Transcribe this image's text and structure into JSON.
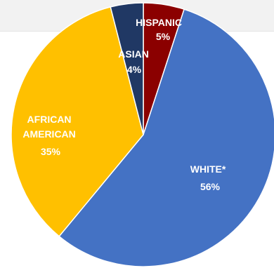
{
  "chart_data": {
    "type": "pie",
    "slices": [
      {
        "label": "HISPANIC",
        "value": 5,
        "value_label": "5%",
        "color": "#8b0000"
      },
      {
        "label": "WHITE*",
        "value": 56,
        "value_label": "56%",
        "color": "#4472c4"
      },
      {
        "label": "AFRICAN AMERICAN",
        "label_lines": [
          "AFRICAN",
          "AMERICAN"
        ],
        "value": 35,
        "value_label": "35%",
        "color": "#ffc000"
      },
      {
        "label": "ASIAN",
        "value": 4,
        "value_label": "4%",
        "color": "#203864"
      }
    ],
    "start": "top, clockwise"
  }
}
